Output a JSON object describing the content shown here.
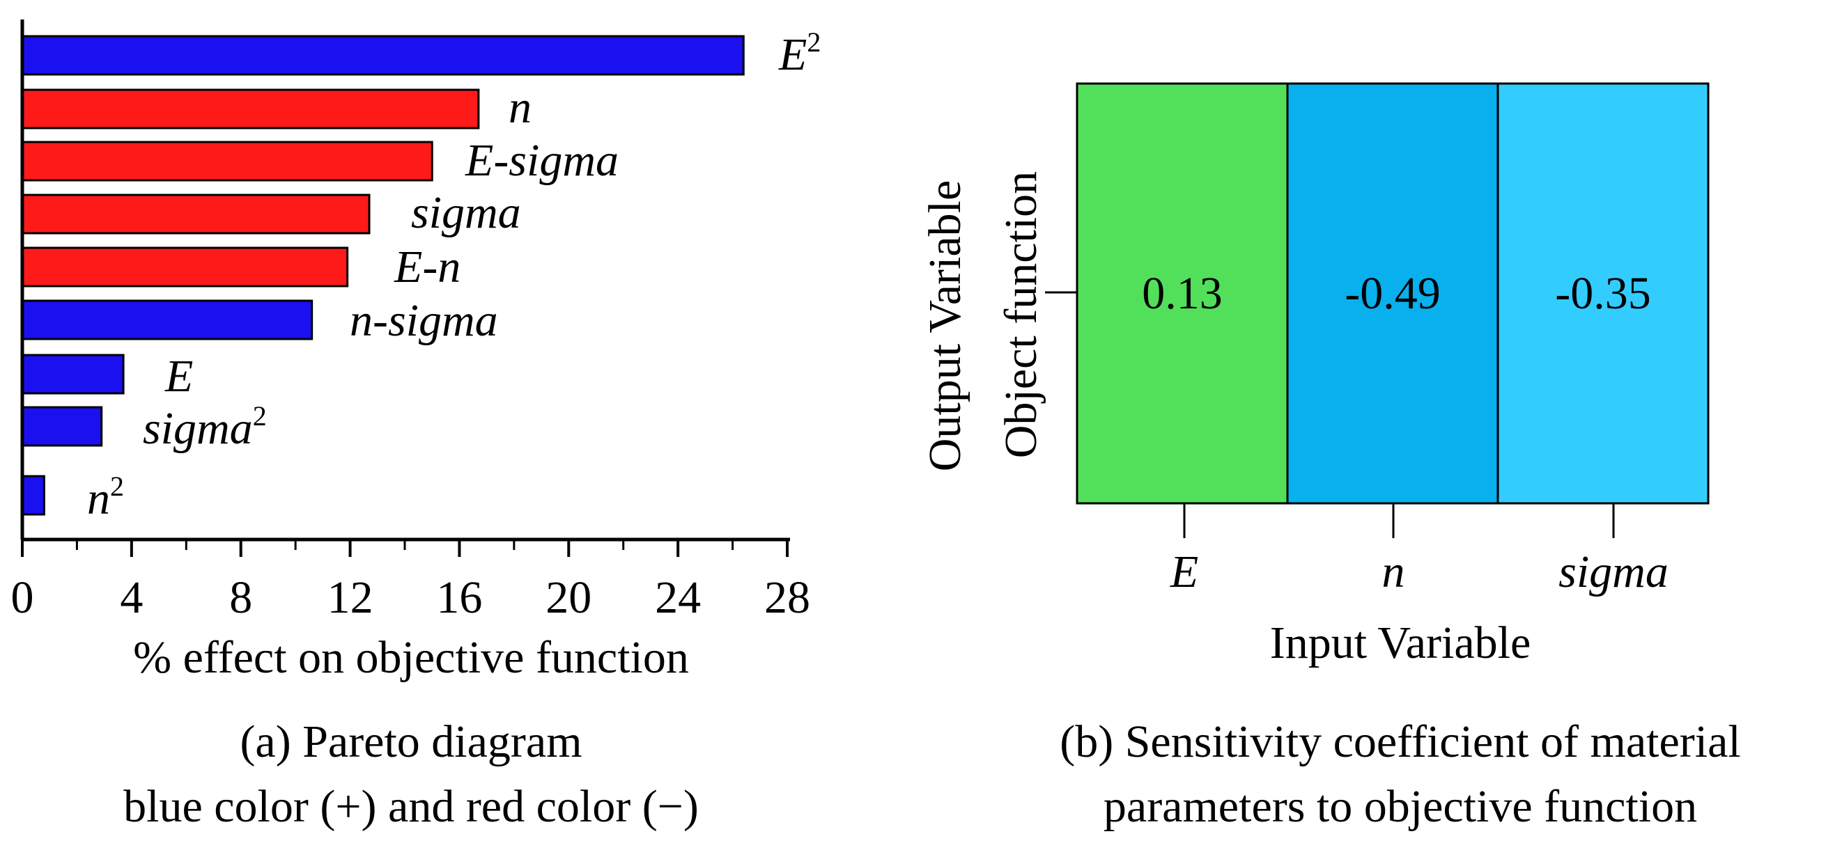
{
  "chart_data": [
    {
      "type": "bar",
      "orientation": "horizontal",
      "categories": [
        "E",
        "n",
        "E-sigma",
        "sigma",
        "E-n",
        "n-sigma",
        "E",
        "sigma",
        "n"
      ],
      "superscripts": [
        "2",
        "",
        "",
        "",
        "",
        "",
        "",
        "2",
        "2"
      ],
      "values": [
        26.4,
        16.7,
        15.0,
        12.7,
        11.9,
        10.6,
        3.7,
        2.9,
        0.8
      ],
      "signs": [
        "+",
        "-",
        "-",
        "-",
        "-",
        "+",
        "+",
        "+",
        "+"
      ],
      "xlabel": "% effect on objective function",
      "ylabel": "",
      "xlim": [
        0,
        28
      ],
      "xticks": [
        0,
        4,
        8,
        12,
        16,
        20,
        24,
        28
      ],
      "caption_line1": "(a) Pareto diagram",
      "caption_line2": "blue color (+) and red color (−)",
      "grid": false
    },
    {
      "type": "heatmap",
      "x_categories": [
        "E",
        "n",
        "sigma"
      ],
      "y_categories": [
        "Object function"
      ],
      "values": [
        [
          0.13,
          -0.49,
          -0.35
        ]
      ],
      "value_labels": [
        "0.13",
        "-0.49",
        "-0.35"
      ],
      "xlabel": "Input Variable",
      "ylabel": "Output Variable",
      "caption_line1": "(b) Sensitivity coefficient of material",
      "caption_line2": "parameters to objective function",
      "grid": false
    }
  ],
  "colors": {
    "positive": "#1a10f0",
    "negative": "#ff1a1a",
    "cell_E": "#52e05a",
    "cell_n": "#08b0ee",
    "cell_sigma": "#33ccff",
    "axis": "#000000"
  }
}
